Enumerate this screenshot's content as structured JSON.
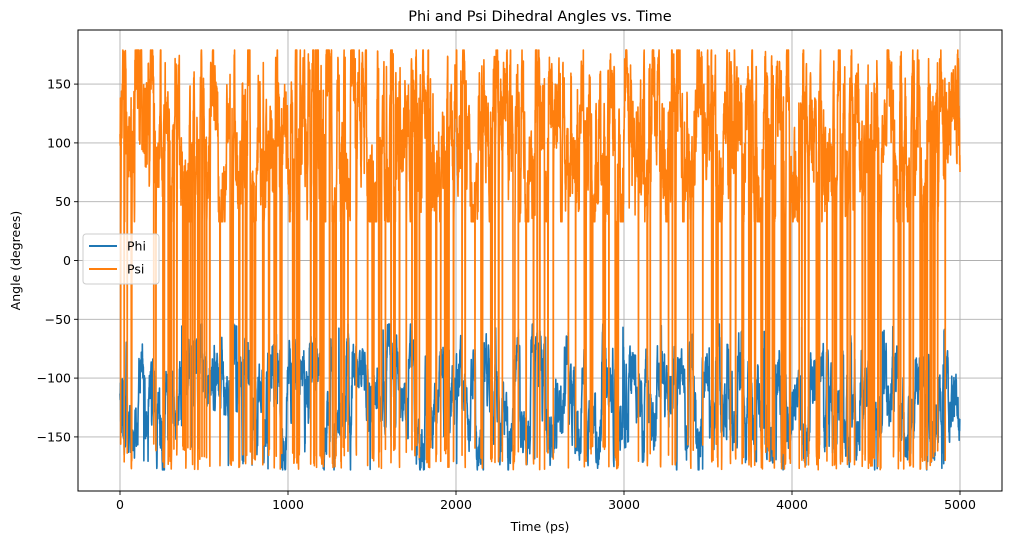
{
  "chart_data": {
    "type": "line",
    "title": "Phi and Psi Dihedral Angles vs. Time",
    "xlabel": "Time (ps)",
    "ylabel": "Angle (degrees)",
    "xlim": [
      -250,
      5250
    ],
    "ylim": [
      -196,
      196
    ],
    "xticks": [
      0,
      1000,
      2000,
      3000,
      4000,
      5000
    ],
    "yticks": [
      -150,
      -100,
      -50,
      0,
      50,
      100,
      150
    ],
    "xtick_labels": [
      "0",
      "1000",
      "2000",
      "3000",
      "4000",
      "5000"
    ],
    "ytick_labels": [
      "−150",
      "−100",
      "−50",
      "0",
      "50",
      "100",
      "150"
    ],
    "grid": true,
    "legend_position": "center-left",
    "series": [
      {
        "name": "Phi",
        "color": "#1f77b4",
        "x_start": 0,
        "x_end": 5000,
        "points": 5001,
        "typical_range": [
          -165,
          -60
        ],
        "min": -178,
        "max": -54,
        "note": "Fluctuates mostly between about -165 and -65 degrees throughout the trajectory"
      },
      {
        "name": "Psi",
        "color": "#ff7f0e",
        "x_start": 0,
        "x_end": 5000,
        "points": 5001,
        "typical_range": [
          35,
          178
        ],
        "min": -180,
        "max": 180,
        "note": "Mostly between 35 and 178 degrees with frequent transitions down to about -180 degrees"
      }
    ]
  }
}
